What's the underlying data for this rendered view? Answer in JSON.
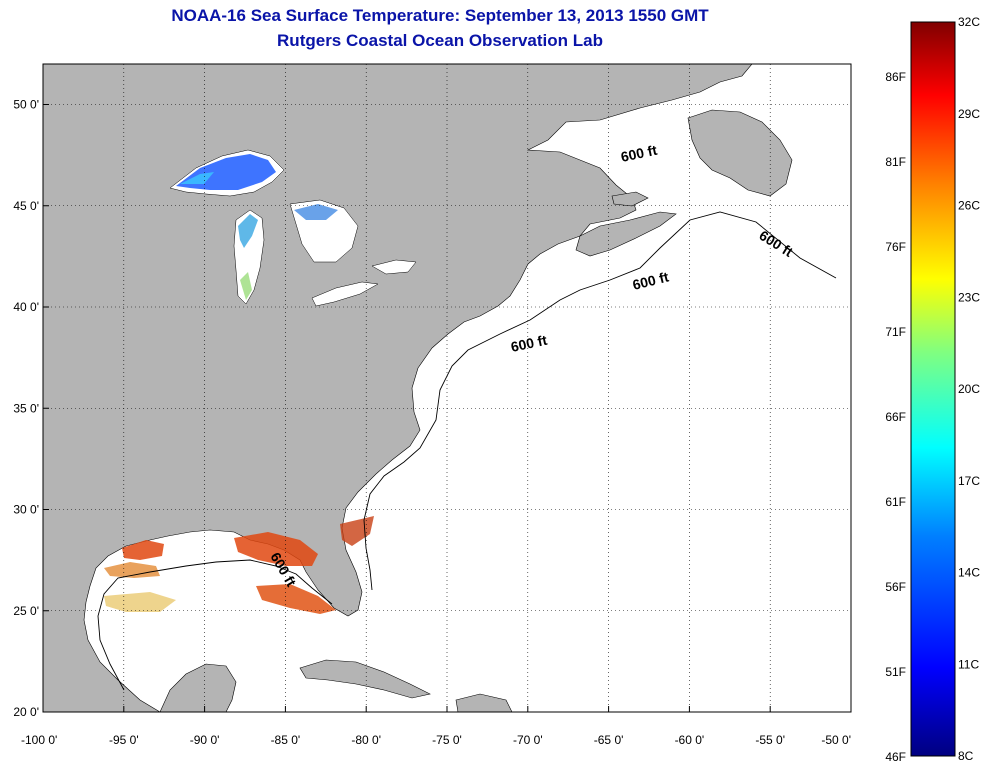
{
  "header": {
    "title": "NOAA-16 Sea Surface Temperature:  September 13, 2013 1550 GMT",
    "subtitle": "Rutgers Coastal Ocean Observation Lab"
  },
  "map": {
    "lon_range": [
      -100,
      -50
    ],
    "lat_range": [
      20,
      52
    ],
    "grid": true,
    "x_ticks": [
      {
        "lon": -100,
        "label": "-100 0'"
      },
      {
        "lon": -95,
        "label": "-95 0'"
      },
      {
        "lon": -90,
        "label": "-90 0'"
      },
      {
        "lon": -85,
        "label": "-85 0'"
      },
      {
        "lon": -80,
        "label": "-80 0'"
      },
      {
        "lon": -75,
        "label": "-75 0'"
      },
      {
        "lon": -70,
        "label": "-70 0'"
      },
      {
        "lon": -65,
        "label": "-65 0'"
      },
      {
        "lon": -60,
        "label": "-60 0'"
      },
      {
        "lon": -55,
        "label": "-55 0'"
      },
      {
        "lon": -50,
        "label": "-50 0'"
      }
    ],
    "y_ticks": [
      {
        "lat": 20,
        "label": "20 0'"
      },
      {
        "lat": 25,
        "label": "25 0'"
      },
      {
        "lat": 30,
        "label": "30 0'"
      },
      {
        "lat": 35,
        "label": "35 0'"
      },
      {
        "lat": 40,
        "label": "40 0'"
      },
      {
        "lat": 45,
        "label": "45 0'"
      },
      {
        "lat": 50,
        "label": "50 0'"
      }
    ],
    "contour_label": "600 ft",
    "land_color": "#b4b4b4",
    "water_color": "#ffffff"
  },
  "colorbar": {
    "celsius_labels": [
      "32C",
      "29C",
      "26C",
      "23C",
      "20C",
      "17C",
      "14C",
      "11C",
      "8C"
    ],
    "fahrenheit_labels": [
      "86F",
      "81F",
      "76F",
      "71F",
      "66F",
      "61F",
      "56F",
      "51F",
      "46F"
    ],
    "range_c": [
      8,
      32
    ],
    "colors": [
      "#000080",
      "#0000ff",
      "#0080ff",
      "#00ffff",
      "#80ff80",
      "#ffff00",
      "#ff8000",
      "#ff0000",
      "#800000"
    ]
  }
}
